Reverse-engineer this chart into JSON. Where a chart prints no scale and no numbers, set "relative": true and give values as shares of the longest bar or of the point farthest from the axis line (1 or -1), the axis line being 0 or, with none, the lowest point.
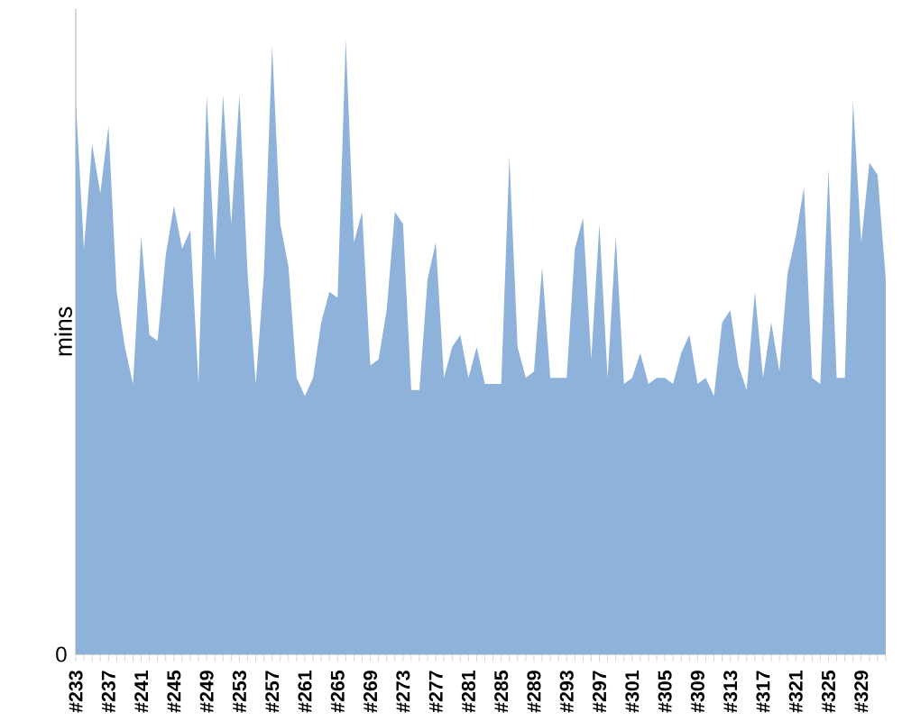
{
  "chart_data": {
    "type": "area",
    "relative": true,
    "ylabel": "mins",
    "color": "#8fb2db",
    "annotations": [
      "0"
    ],
    "categories": [
      "#233",
      null,
      null,
      null,
      "#237",
      null,
      null,
      null,
      "#241",
      null,
      null,
      null,
      "#245",
      null,
      null,
      null,
      "#249",
      null,
      null,
      null,
      "#253",
      null,
      null,
      null,
      "#257",
      null,
      null,
      null,
      "#261",
      null,
      null,
      null,
      "#265",
      null,
      null,
      null,
      "#269",
      null,
      null,
      null,
      "#273",
      null,
      null,
      null,
      "#277",
      null,
      null,
      null,
      "#281",
      null,
      null,
      null,
      "#285",
      null,
      null,
      null,
      "#289",
      null,
      null,
      null,
      "#293",
      null,
      null,
      null,
      "#297",
      null,
      null,
      null,
      "#301",
      null,
      null,
      null,
      "#305",
      null,
      null,
      null,
      "#309",
      null,
      null,
      null,
      "#313",
      null,
      null,
      null,
      "#317",
      null,
      null,
      null,
      "#321",
      null,
      null,
      null,
      "#325",
      null,
      null,
      null,
      "#329",
      null,
      null,
      null
    ],
    "values": [
      0.9,
      0.66,
      0.83,
      0.75,
      0.86,
      0.59,
      0.5,
      0.44,
      0.68,
      0.52,
      0.51,
      0.65,
      0.73,
      0.66,
      0.69,
      0.44,
      0.91,
      0.64,
      0.91,
      0.7,
      0.91,
      0.62,
      0.44,
      0.62,
      0.99,
      0.7,
      0.63,
      0.45,
      0.42,
      0.45,
      0.54,
      0.59,
      0.58,
      1.0,
      0.67,
      0.72,
      0.47,
      0.48,
      0.56,
      0.72,
      0.7,
      0.43,
      0.43,
      0.61,
      0.67,
      0.45,
      0.5,
      0.52,
      0.45,
      0.5,
      0.44,
      0.44,
      0.44,
      0.81,
      0.5,
      0.45,
      0.46,
      0.63,
      0.45,
      0.45,
      0.45,
      0.66,
      0.71,
      0.48,
      0.7,
      0.45,
      0.68,
      0.44,
      0.45,
      0.49,
      0.44,
      0.45,
      0.45,
      0.44,
      0.49,
      0.52,
      0.44,
      0.45,
      0.42,
      0.54,
      0.56,
      0.47,
      0.43,
      0.59,
      0.45,
      0.54,
      0.46,
      0.62,
      0.68,
      0.76,
      0.45,
      0.44,
      0.79,
      0.45,
      0.45,
      0.9,
      0.67,
      0.8,
      0.78,
      0.61
    ]
  }
}
